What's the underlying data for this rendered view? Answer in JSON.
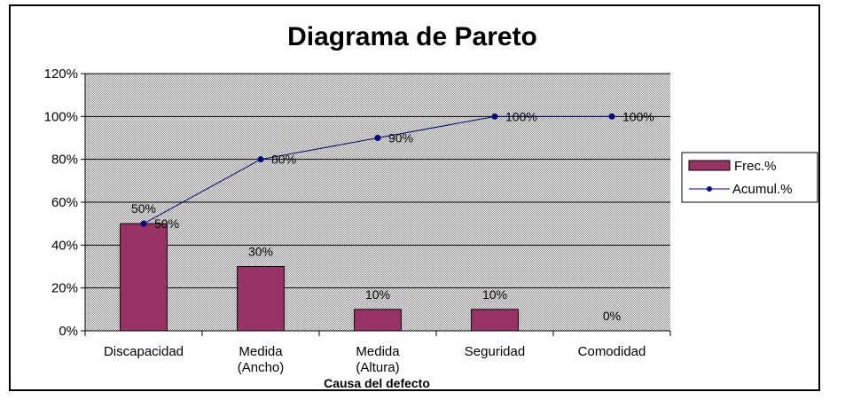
{
  "chart_data": {
    "type": "bar",
    "title": "Diagrama de Pareto",
    "xlabel": "Causa del defecto",
    "ylabel": "",
    "ylim": [
      0,
      120
    ],
    "yticks": [
      "0%",
      "20%",
      "40%",
      "60%",
      "80%",
      "100%",
      "120%"
    ],
    "grid": true,
    "legend_position": "right",
    "categories": [
      [
        "Discapacidad"
      ],
      [
        "Medida",
        "(Ancho)"
      ],
      [
        "Medida",
        "(Altura)"
      ],
      [
        "Seguridad"
      ],
      [
        "Comodidad"
      ]
    ],
    "series": [
      {
        "name": "Frec.%",
        "kind": "bar",
        "color": "#993366",
        "values": [
          50,
          30,
          10,
          10,
          0
        ],
        "labels": [
          "50%",
          "30%",
          "10%",
          "10%",
          "0%"
        ]
      },
      {
        "name": "Acumul.%",
        "kind": "line",
        "color": "#000080",
        "values": [
          50,
          80,
          90,
          100,
          100
        ],
        "labels": [
          "50%",
          "80%",
          "90%",
          "100%",
          "100%"
        ]
      }
    ],
    "plot_background": "#c0c0c0"
  }
}
